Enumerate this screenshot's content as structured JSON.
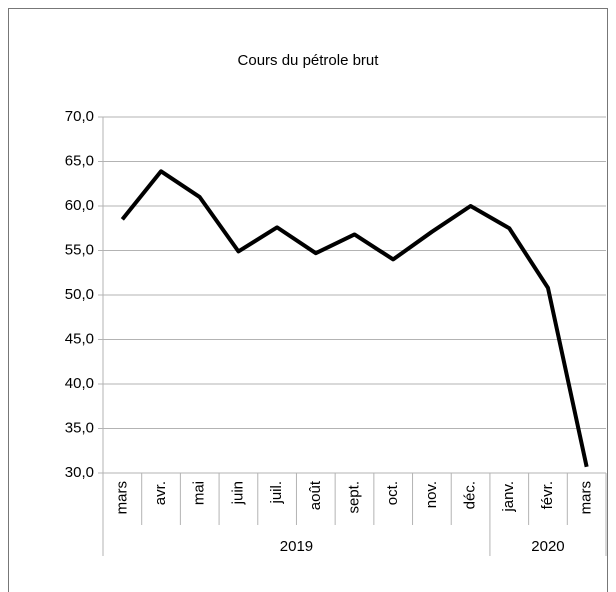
{
  "chart_data": {
    "type": "line",
    "title": "Cours du pétrole brut",
    "groups": [
      {
        "label": "2019",
        "categories": [
          "mars",
          "avr.",
          "mai",
          "juin",
          "juil.",
          "août",
          "sept.",
          "oct.",
          "nov.",
          "déc."
        ]
      },
      {
        "label": "2020",
        "categories": [
          "janv.",
          "févr.",
          "mars"
        ]
      }
    ],
    "series": [
      {
        "color": "#000000",
        "values": [
          58.5,
          63.9,
          61.0,
          54.9,
          57.6,
          54.7,
          56.8,
          54.0,
          57.1,
          60.0,
          57.5,
          50.8,
          30.7
        ]
      }
    ],
    "ylim": [
      30,
      70
    ],
    "yticks": [
      {
        "value": 30,
        "label": "30,0"
      },
      {
        "value": 35,
        "label": "35,0"
      },
      {
        "value": 40,
        "label": "40,0"
      },
      {
        "value": 45,
        "label": "45,0"
      },
      {
        "value": 50,
        "label": "50,0"
      },
      {
        "value": 55,
        "label": "55,0"
      },
      {
        "value": 60,
        "label": "60,0"
      },
      {
        "value": 65,
        "label": "65,0"
      },
      {
        "value": 70,
        "label": "70,0"
      }
    ],
    "grid": true
  }
}
